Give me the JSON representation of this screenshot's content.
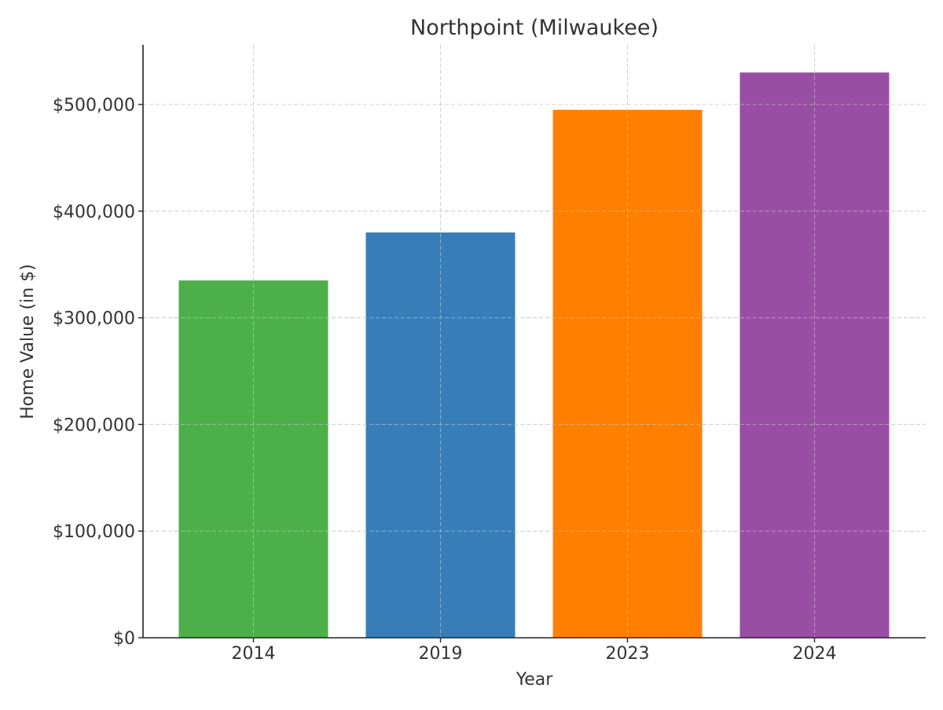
{
  "chart_data": {
    "type": "bar",
    "title": "Northpoint (Milwaukee)",
    "xlabel": "Year",
    "ylabel": "Home Value (in $)",
    "categories": [
      "2014",
      "2019",
      "2023",
      "2024"
    ],
    "values": [
      335000,
      380000,
      495000,
      530000
    ],
    "colors": [
      "#4daf4a",
      "#377eb8",
      "#ff7f00",
      "#984ea3"
    ],
    "ylim": [
      0,
      556000
    ],
    "yticks": [
      0,
      100000,
      200000,
      300000,
      400000,
      500000
    ],
    "ytick_labels": [
      "$0",
      "$100,000",
      "$200,000",
      "$300,000",
      "$400,000",
      "$500,000"
    ],
    "grid": true,
    "legend": "none"
  }
}
